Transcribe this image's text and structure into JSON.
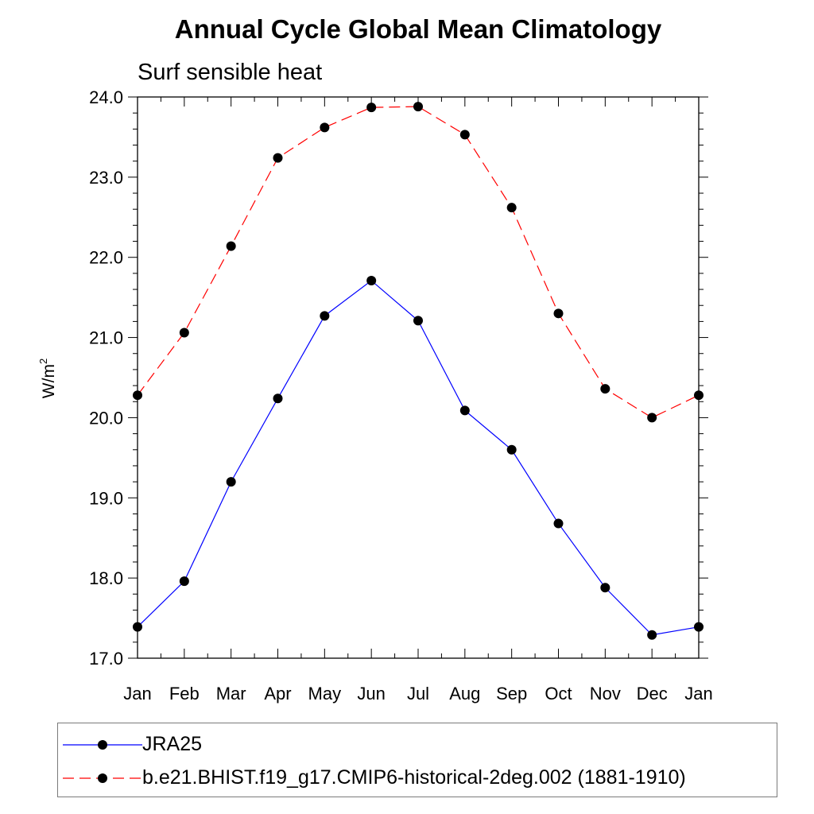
{
  "chart_data": {
    "type": "line",
    "title": "Annual Cycle Global Mean Climatology",
    "subtitle": "Surf sensible heat",
    "xlabel": "",
    "ylabel": "W/m",
    "ylabel_superscript": "2",
    "categories": [
      "Jan",
      "Feb",
      "Mar",
      "Apr",
      "May",
      "Jun",
      "Jul",
      "Aug",
      "Sep",
      "Oct",
      "Nov",
      "Dec",
      "Jan"
    ],
    "ylim": [
      17.0,
      24.0
    ],
    "yticks": [
      "17.0",
      "18.0",
      "19.0",
      "20.0",
      "21.0",
      "22.0",
      "23.0",
      "24.0"
    ],
    "ytick_values": [
      17,
      18,
      19,
      20,
      21,
      22,
      23,
      24
    ],
    "grid": false,
    "legend_position": "bottom",
    "series": [
      {
        "name": "JRA25",
        "color": "#0000ff",
        "line_style": "solid",
        "values": [
          17.39,
          17.96,
          19.2,
          20.24,
          21.27,
          21.71,
          21.21,
          20.09,
          19.6,
          18.68,
          17.88,
          17.29,
          17.39
        ]
      },
      {
        "name": "b.e21.BHIST.f19_g17.CMIP6-historical-2deg.002 (1881-1910)",
        "color": "#ff0000",
        "line_style": "dashed",
        "values": [
          20.28,
          21.06,
          22.14,
          23.24,
          23.62,
          23.87,
          23.88,
          23.53,
          22.62,
          21.3,
          20.36,
          20.0,
          20.28
        ]
      }
    ]
  }
}
